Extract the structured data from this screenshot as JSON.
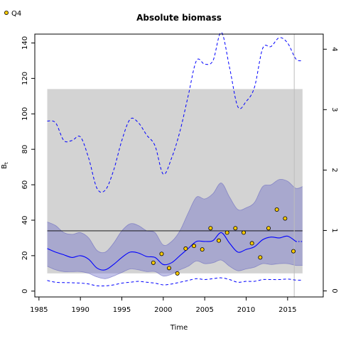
{
  "chart_data": {
    "type": "line",
    "title": "Absolute biomass",
    "xlabel": "Time",
    "ylabel": "B",
    "ylabel_subscript": "t",
    "xlim": [
      1984.5,
      2019.3
    ],
    "ylim": [
      -3.3,
      145
    ],
    "y2lim": [
      -0.1,
      4.25
    ],
    "x_ticks": [
      1985,
      1990,
      1995,
      2000,
      2005,
      2010,
      2015
    ],
    "y_ticks": [
      0,
      20,
      40,
      60,
      80,
      100,
      120,
      140
    ],
    "y2_ticks": [
      0,
      1,
      2,
      3,
      4
    ],
    "grey_band": {
      "x": [
        1986,
        2016.8
      ],
      "y": [
        10,
        114
      ]
    },
    "reference_line_y": 34,
    "vertical_line_x": 2015.8,
    "x": [
      1986,
      1987,
      1988,
      1989,
      1990,
      1991,
      1992,
      1993,
      1994,
      1995,
      1996,
      1997,
      1998,
      1999,
      2000,
      2001,
      2002,
      2003,
      2004,
      2005,
      2006,
      2007,
      2008,
      2009,
      2010,
      2011,
      2012,
      2013,
      2014,
      2015,
      2016,
      2016.8
    ],
    "series": [
      {
        "role": "estimate",
        "color": "#0000ff",
        "style": "solid",
        "values": [
          24,
          22,
          20.5,
          19,
          20,
          18,
          13,
          12,
          15,
          19,
          22,
          21.5,
          19.5,
          19,
          15,
          16,
          20,
          24,
          28,
          28,
          28.5,
          33,
          27,
          22,
          23.5,
          25,
          29,
          30.5,
          30,
          31,
          28,
          28
        ]
      },
      {
        "role": "ci_upper",
        "color": "#8888cc",
        "style": "band",
        "values": [
          39,
          37,
          33,
          32,
          33,
          30,
          23,
          22,
          27,
          34,
          38,
          37,
          34,
          33,
          26,
          28,
          34,
          44,
          53,
          52,
          55,
          61,
          53,
          46,
          47,
          50,
          59,
          60,
          63,
          62,
          58,
          59
        ]
      },
      {
        "role": "ci_lower",
        "color": "#8888cc",
        "style": "band",
        "values": [
          14,
          12,
          11,
          11,
          11,
          10,
          8,
          7,
          8.5,
          10.5,
          12.5,
          12,
          11,
          11,
          8.5,
          9.5,
          12,
          14,
          17,
          15.5,
          16,
          17.5,
          14,
          11.5,
          12.5,
          13.5,
          15.5,
          15,
          15.5,
          15.5,
          14.5,
          14.5
        ]
      },
      {
        "role": "upper_dashed",
        "color": "#0000ff",
        "style": "dashed",
        "values": [
          96,
          95,
          85,
          85,
          87,
          75,
          58,
          57,
          68,
          85,
          97,
          95,
          88,
          82,
          66,
          75,
          90,
          110,
          130,
          128,
          130,
          146,
          126,
          104,
          107,
          115,
          137,
          138,
          143,
          140,
          131,
          130
        ]
      },
      {
        "role": "lower_dashed",
        "color": "#0000ff",
        "style": "dashed",
        "values": [
          6,
          5,
          4.8,
          4.7,
          4.5,
          4,
          3,
          3,
          3.5,
          4.5,
          5,
          5.5,
          5,
          4.5,
          3.5,
          4,
          5,
          6,
          7,
          6.5,
          7,
          7.5,
          6.5,
          5,
          5.5,
          5.5,
          6.5,
          6.5,
          6.5,
          6.8,
          6.2,
          6.2
        ]
      }
    ],
    "points": {
      "name": "Q4",
      "color": "#ffcc00",
      "x": [
        1998.8,
        1999.8,
        2000.7,
        2001.7,
        2002.7,
        2003.7,
        2004.7,
        2005.7,
        2006.7,
        2007.7,
        2008.7,
        2009.7,
        2010.7,
        2011.7,
        2012.7,
        2013.7,
        2014.7,
        2015.7
      ],
      "y": [
        16,
        21,
        13,
        10,
        24,
        25.5,
        23.5,
        35.5,
        28.5,
        33,
        35.5,
        33,
        27,
        19,
        35.5,
        46,
        41,
        22.5
      ]
    },
    "legend": {
      "entries": [
        "Q4"
      ],
      "placement": "top-left"
    },
    "grid": false
  }
}
